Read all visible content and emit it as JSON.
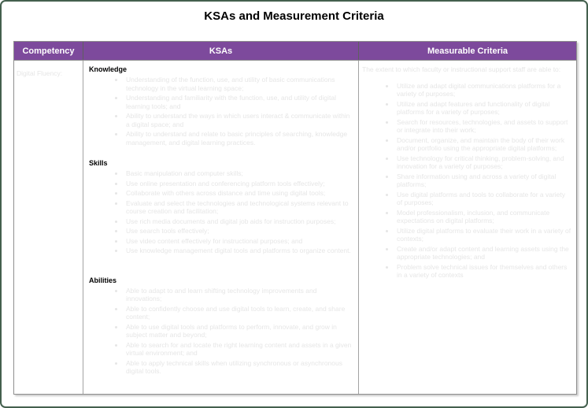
{
  "page": {
    "title": "KSAs and Measurement Criteria"
  },
  "colors": {
    "header_bg": "#7d4a9c",
    "header_text": "#ffffff",
    "faint_text": "#e6e6e6",
    "frame_border": "#44604e",
    "table_border": "#8f8f8f"
  },
  "table": {
    "headers": [
      "Competency",
      "KSAs",
      "Measurable Criteria"
    ],
    "row": {
      "competency": "Digital Fluency:",
      "ksas": {
        "sections": [
          {
            "heading": "Knowledge",
            "bullets": [
              "Understanding of the function, use, and utility of basic communications technology in the virtual learning space;",
              "Understanding and familiarity with the function, use, and utility of digital learning tools; and",
              "Ability to understand the ways in which users interact & communicate within a digital space; and",
              "Ability to understand and relate to basic principles of searching, knowledge management, and digital learning practices."
            ]
          },
          {
            "heading": "Skills",
            "bullets": [
              "Basic manipulation and computer skills;",
              "Use online presentation and conferencing platform tools effectively;",
              "Collaborate with others across distance and time using digital tools;",
              "Evaluate and select the technologies and technological systems relevant to course creation and facilitation;",
              "Use rich media documents and digital job aids for instruction purposes;",
              "Use search tools effectively;",
              "Use video content effectively for instructional purposes; and",
              "Use knowledge management digital tools and platforms to organize content."
            ]
          },
          {
            "heading": "Abilities",
            "bullets": [
              "Able to adapt to and learn shifting technology improvements and innovations;",
              "Able to confidently choose and use digital tools to learn, create, and share content;",
              "Able to use digital tools and platforms to perform, innovate, and grow in subject matter and beyond;",
              "Able to search for and locate the right learning content and assets in a given virtual environment; and",
              "Able to apply technical skills when utilizing synchronous or asynchronous digital tools."
            ]
          }
        ]
      },
      "criteria": {
        "intro": "The extent to which faculty or instructional support staff are able to:",
        "bullets": [
          "Utilize and adapt digital communications platforms for a variety of purposes;",
          "Utilize and adapt features and functionality of digital platforms for a variety of purposes;",
          "Search for resources, technologies, and assets to support or integrate into their work;",
          "Document, organize, and maintain the body of their work and/or portfolio using the appropriate digital platforms;",
          "Use technology for critical thinking, problem-solving, and innovation for a variety of purposes;",
          "Share information using and across a variety of digital platforms;",
          "Use digital platforms and tools to collaborate for a variety of purposes;",
          "Model professionalism, inclusion, and communicate expectations on digital platforms;",
          "Utilize digital platforms to evaluate their work in a variety of contexts;",
          "Create and/or adapt content and learning assets using the appropriate technologies; and",
          "Problem solve technical issues for themselves and others in a variety of contexts"
        ]
      }
    }
  }
}
